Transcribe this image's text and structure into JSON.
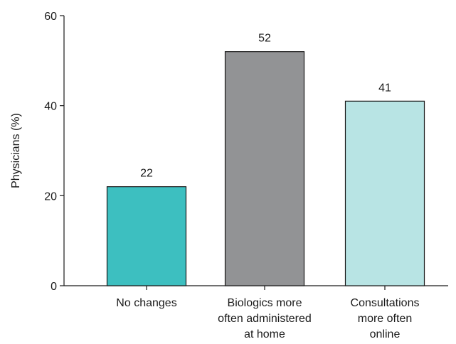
{
  "chart_data": {
    "type": "bar",
    "categories": [
      [
        "No changes"
      ],
      [
        "Biologics more",
        "often administered",
        "at home"
      ],
      [
        "Consultations",
        "more often",
        "online"
      ]
    ],
    "values": [
      22,
      52,
      41
    ],
    "data_labels": [
      "22",
      "52",
      "41"
    ],
    "colors": [
      "#3dbfc0",
      "#929395",
      "#b8e4e4"
    ],
    "ylabel": "Physicians (%)",
    "xlabel": "",
    "title": "",
    "ylim": [
      0,
      60
    ],
    "yticks": [
      0,
      20,
      40,
      60
    ],
    "grid": false,
    "legend": false
  }
}
